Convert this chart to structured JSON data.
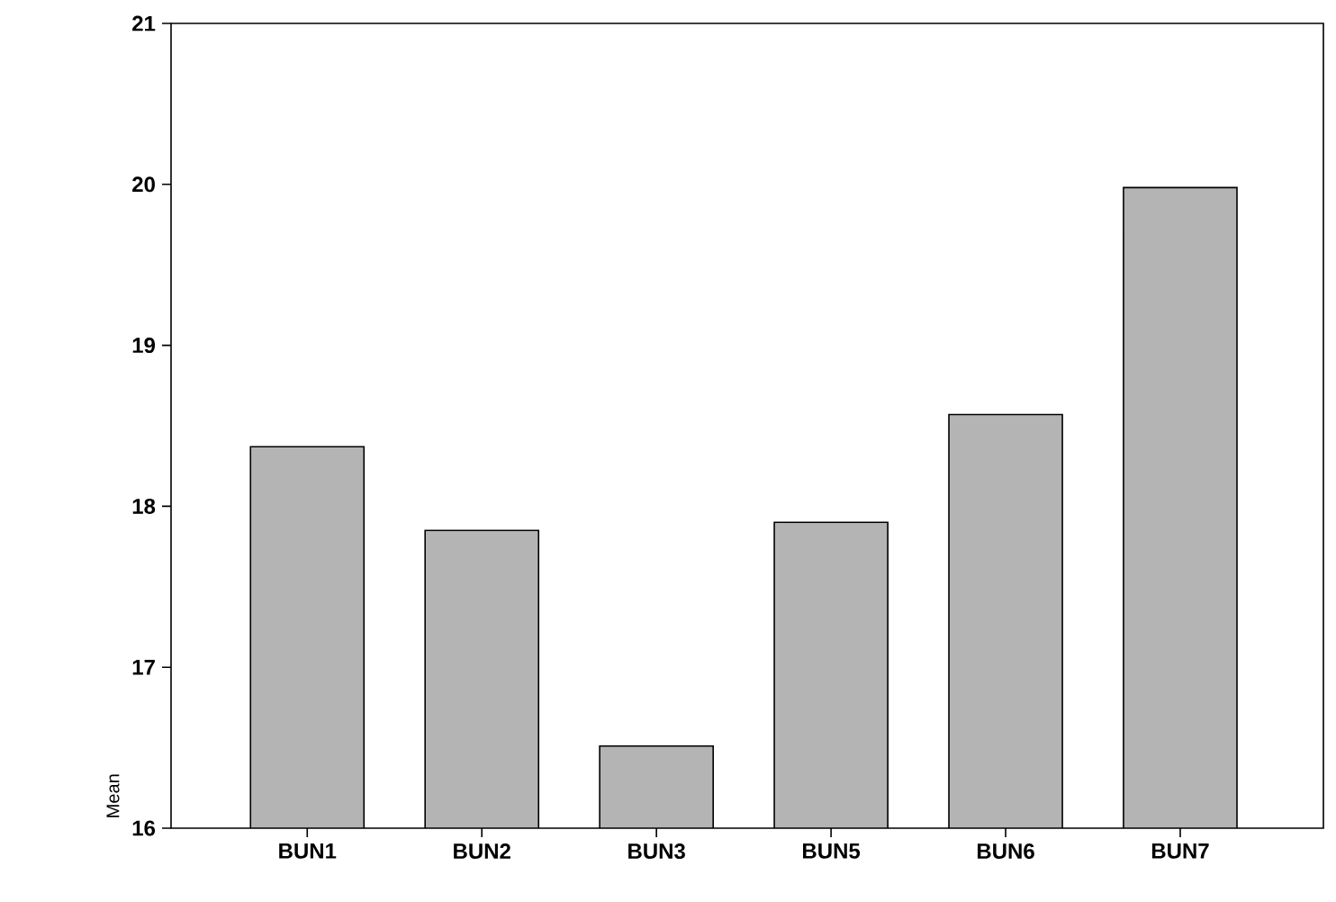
{
  "chart_data": {
    "type": "bar",
    "ylabel": "Mean",
    "categories": [
      "BUN1",
      "BUN2",
      "BUN3",
      "BUN5",
      "BUN6",
      "BUN7"
    ],
    "values": [
      18.37,
      17.85,
      16.51,
      17.9,
      18.57,
      19.98
    ],
    "color": "#b4b4b4",
    "ylim": [
      16,
      21
    ],
    "yticks": [
      16,
      17,
      18,
      19,
      20,
      21
    ],
    "grid": false
  }
}
